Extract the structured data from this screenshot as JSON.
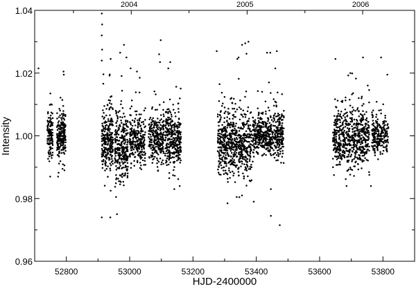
{
  "chart_data": {
    "type": "scatter",
    "title": "",
    "xlabel": "HJD-2400000",
    "ylabel": "Intensity",
    "xlim": [
      52700,
      53900
    ],
    "ylim": [
      0.96,
      1.04
    ],
    "xticks": [
      52800,
      53000,
      53200,
      53400,
      53600,
      53800
    ],
    "xtick_labels": [
      "52800",
      "53000",
      "53200",
      "53400",
      "53600",
      "53800"
    ],
    "yticks": [
      0.96,
      0.98,
      1.0,
      1.02,
      1.04
    ],
    "ytick_labels": [
      "0.96",
      "0.98",
      "1.00",
      "1.02",
      "1.04"
    ],
    "top_axis": {
      "ticks": [
        53005,
        53371,
        53736
      ],
      "labels": [
        "2004",
        "2005",
        "2006"
      ]
    },
    "grid": false,
    "marker_color": "#000000",
    "seasons": [
      {
        "x_range": [
          52740,
          52757
        ],
        "mean": 1.0,
        "scatter": 0.0035,
        "n": 110
      },
      {
        "x_range": [
          52770,
          52798
        ],
        "mean": 1.0,
        "scatter": 0.0035,
        "n": 200
      },
      {
        "x_range": [
          52912,
          52948
        ],
        "mean": 0.998,
        "scatter": 0.0045,
        "n": 260
      },
      {
        "x_range": [
          52953,
          52995
        ],
        "mean": 0.996,
        "scatter": 0.005,
        "n": 280
      },
      {
        "x_range": [
          53000,
          53050
        ],
        "mean": 0.999,
        "scatter": 0.004,
        "n": 250
      },
      {
        "x_range": [
          53060,
          53108
        ],
        "mean": 0.999,
        "scatter": 0.0035,
        "n": 260
      },
      {
        "x_range": [
          53112,
          53162
        ],
        "mean": 0.999,
        "scatter": 0.0045,
        "n": 320
      },
      {
        "x_range": [
          53278,
          53340
        ],
        "mean": 0.998,
        "scatter": 0.005,
        "n": 380
      },
      {
        "x_range": [
          53342,
          53385
        ],
        "mean": 0.997,
        "scatter": 0.005,
        "n": 260
      },
      {
        "x_range": [
          53388,
          53455
        ],
        "mean": 1.0,
        "scatter": 0.0032,
        "n": 350
      },
      {
        "x_range": [
          53455,
          53487
        ],
        "mean": 1.0,
        "scatter": 0.0035,
        "n": 180
      },
      {
        "x_range": [
          53642,
          53720
        ],
        "mean": 0.999,
        "scatter": 0.0045,
        "n": 420
      },
      {
        "x_range": [
          53720,
          53757
        ],
        "mean": 1.0,
        "scatter": 0.0042,
        "n": 200
      },
      {
        "x_range": [
          53765,
          53817
        ],
        "mean": 1.0,
        "scatter": 0.003,
        "n": 230
      }
    ],
    "outliers": [
      [
        52712,
        1.0215
      ],
      [
        52791,
        1.0205
      ],
      [
        52792,
        1.0195
      ],
      [
        52749,
        0.987
      ],
      [
        52774,
        0.987
      ],
      [
        52794,
        0.989
      ],
      [
        52912,
        1.039
      ],
      [
        52913,
        1.0355
      ],
      [
        52912,
        1.032
      ],
      [
        52913,
        1.0275
      ],
      [
        52912,
        1.024
      ],
      [
        52912,
        0.974
      ],
      [
        52939,
        0.974
      ],
      [
        52940,
        0.9825
      ],
      [
        52957,
        0.9805
      ],
      [
        52960,
        0.975
      ],
      [
        52940,
        1.0245
      ],
      [
        52982,
        1.029
      ],
      [
        52970,
        1.0265
      ],
      [
        52990,
        1.025
      ],
      [
        53003,
        1.0215
      ],
      [
        53023,
        1.0205
      ],
      [
        53098,
        1.0305
      ],
      [
        53093,
        1.026
      ],
      [
        53096,
        1.0235
      ],
      [
        53128,
        1.0235
      ],
      [
        53122,
        1.0215
      ],
      [
        53141,
        0.983
      ],
      [
        53158,
        0.984
      ],
      [
        53125,
        0.9865
      ],
      [
        53275,
        1.027
      ],
      [
        53375,
        1.03
      ],
      [
        53365,
        1.0295
      ],
      [
        53355,
        1.029
      ],
      [
        53340,
        1.0245
      ],
      [
        53344,
        1.025
      ],
      [
        53434,
        1.0265
      ],
      [
        53444,
        1.0265
      ],
      [
        53465,
        1.027
      ],
      [
        53460,
        1.0215
      ],
      [
        53309,
        0.9785
      ],
      [
        53338,
        0.9805
      ],
      [
        53355,
        0.981
      ],
      [
        53392,
        0.979
      ],
      [
        53446,
        0.983
      ],
      [
        53446,
        0.9745
      ],
      [
        53474,
        0.9715
      ],
      [
        53650,
        1.0245
      ],
      [
        53737,
        1.025
      ],
      [
        53794,
        1.025
      ],
      [
        53814,
        1.0195
      ],
      [
        53685,
        0.984
      ],
      [
        53762,
        0.984
      ],
      [
        53697,
        1.02
      ]
    ]
  }
}
